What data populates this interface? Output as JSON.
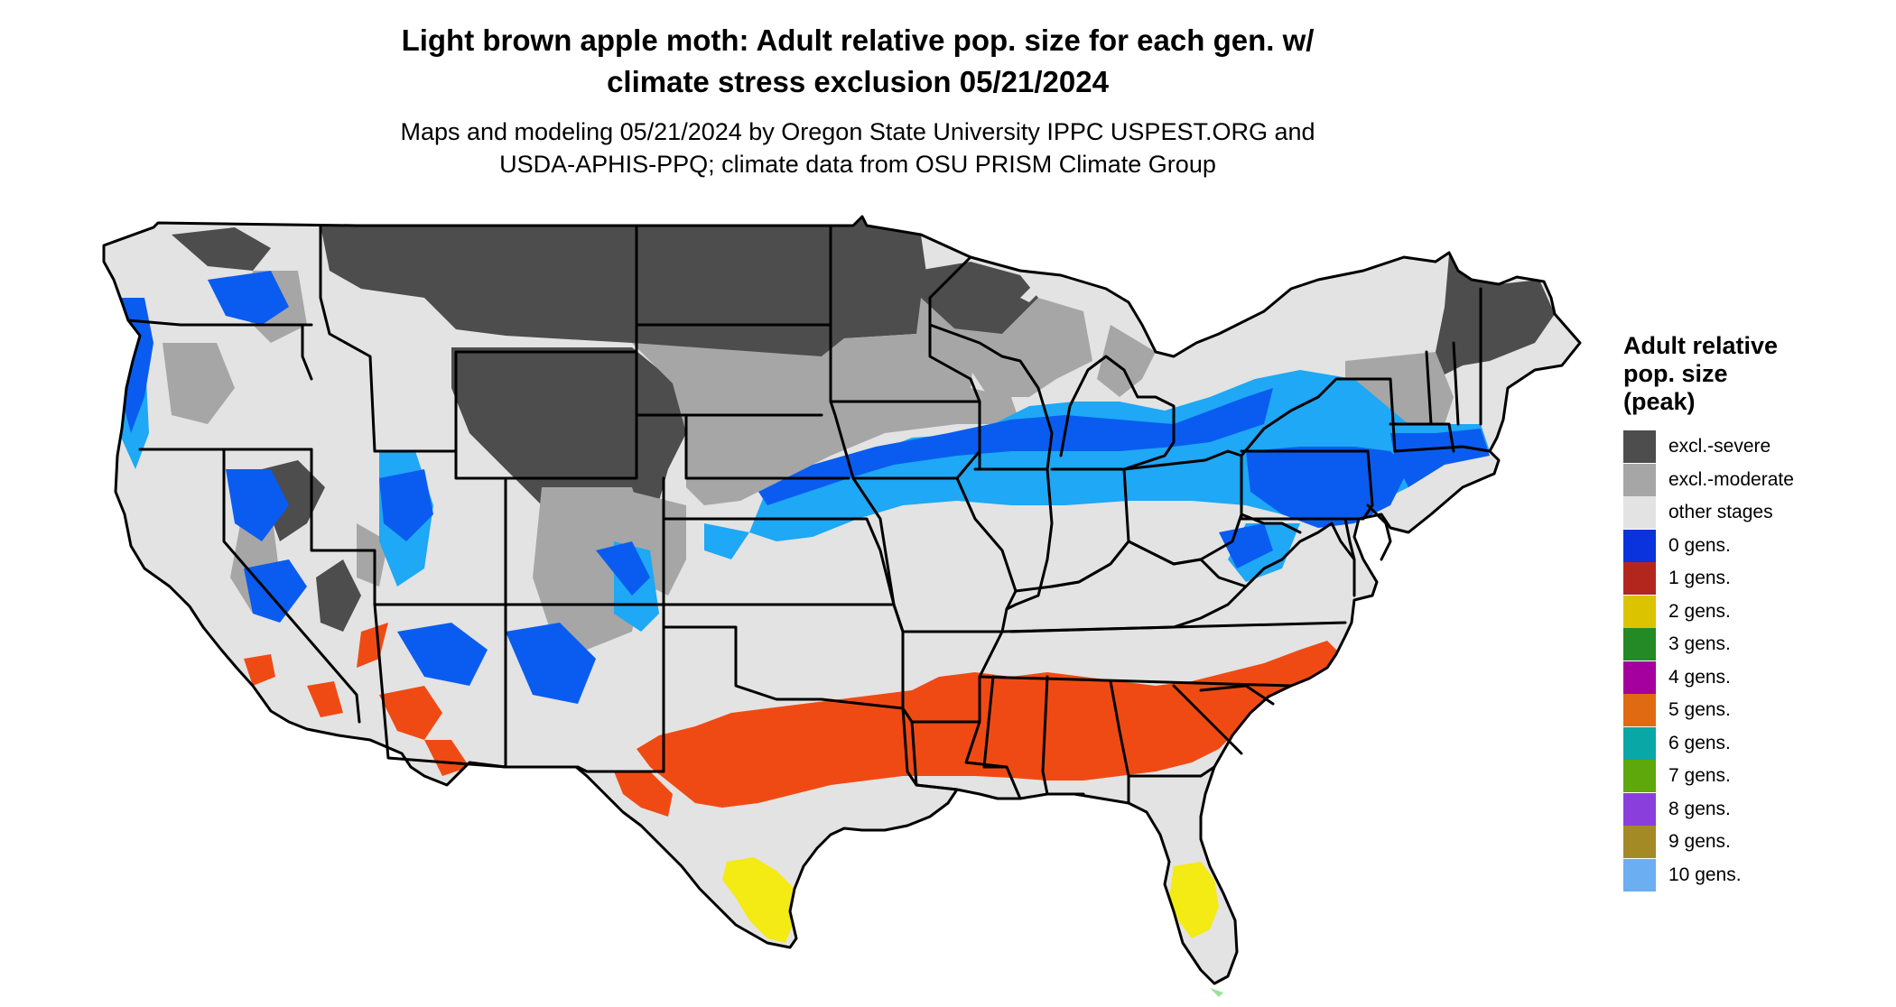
{
  "title": {
    "line1": "Light brown apple moth: Adult relative pop. size for each gen. w/",
    "line2": "climate stress exclusion 05/21/2024"
  },
  "subtitle": {
    "line1": "Maps and modeling 05/21/2024 by Oregon State University IPPC USPEST.ORG and",
    "line2": "USDA-APHIS-PPQ; climate data from OSU PRISM Climate Group"
  },
  "legend": {
    "title_lines": [
      "Adult relative",
      "pop. size",
      "(peak)"
    ],
    "items": [
      {
        "label": "excl.-severe",
        "color": "#4d4d4d"
      },
      {
        "label": "excl.-moderate",
        "color": "#a6a6a6"
      },
      {
        "label": "other stages",
        "color": "#e3e3e3"
      },
      {
        "label": "0 gens.",
        "color": "#0a33dd"
      },
      {
        "label": "1 gens.",
        "color": "#b3261e"
      },
      {
        "label": "2 gens.",
        "color": "#dcc300"
      },
      {
        "label": "3 gens.",
        "color": "#238a25"
      },
      {
        "label": "4 gens.",
        "color": "#a5009f"
      },
      {
        "label": "5 gens.",
        "color": "#e06a12"
      },
      {
        "label": "6 gens.",
        "color": "#0aa7a7"
      },
      {
        "label": "7 gens.",
        "color": "#5ea80c"
      },
      {
        "label": "8 gens.",
        "color": "#8a3fdc"
      },
      {
        "label": "9 gens.",
        "color": "#a38a25"
      },
      {
        "label": "10 gens.",
        "color": "#6caef2"
      }
    ]
  },
  "map_colors": {
    "land_other": "#e3e3e3",
    "excl_severe": "#4d4d4d",
    "excl_moderate": "#a6a6a6",
    "blue_zero": "#0a5cf0",
    "light_blue": "#1ea8f5",
    "orange_red": "#f04a14",
    "yellow": "#f4ea14",
    "border": "#000000"
  }
}
